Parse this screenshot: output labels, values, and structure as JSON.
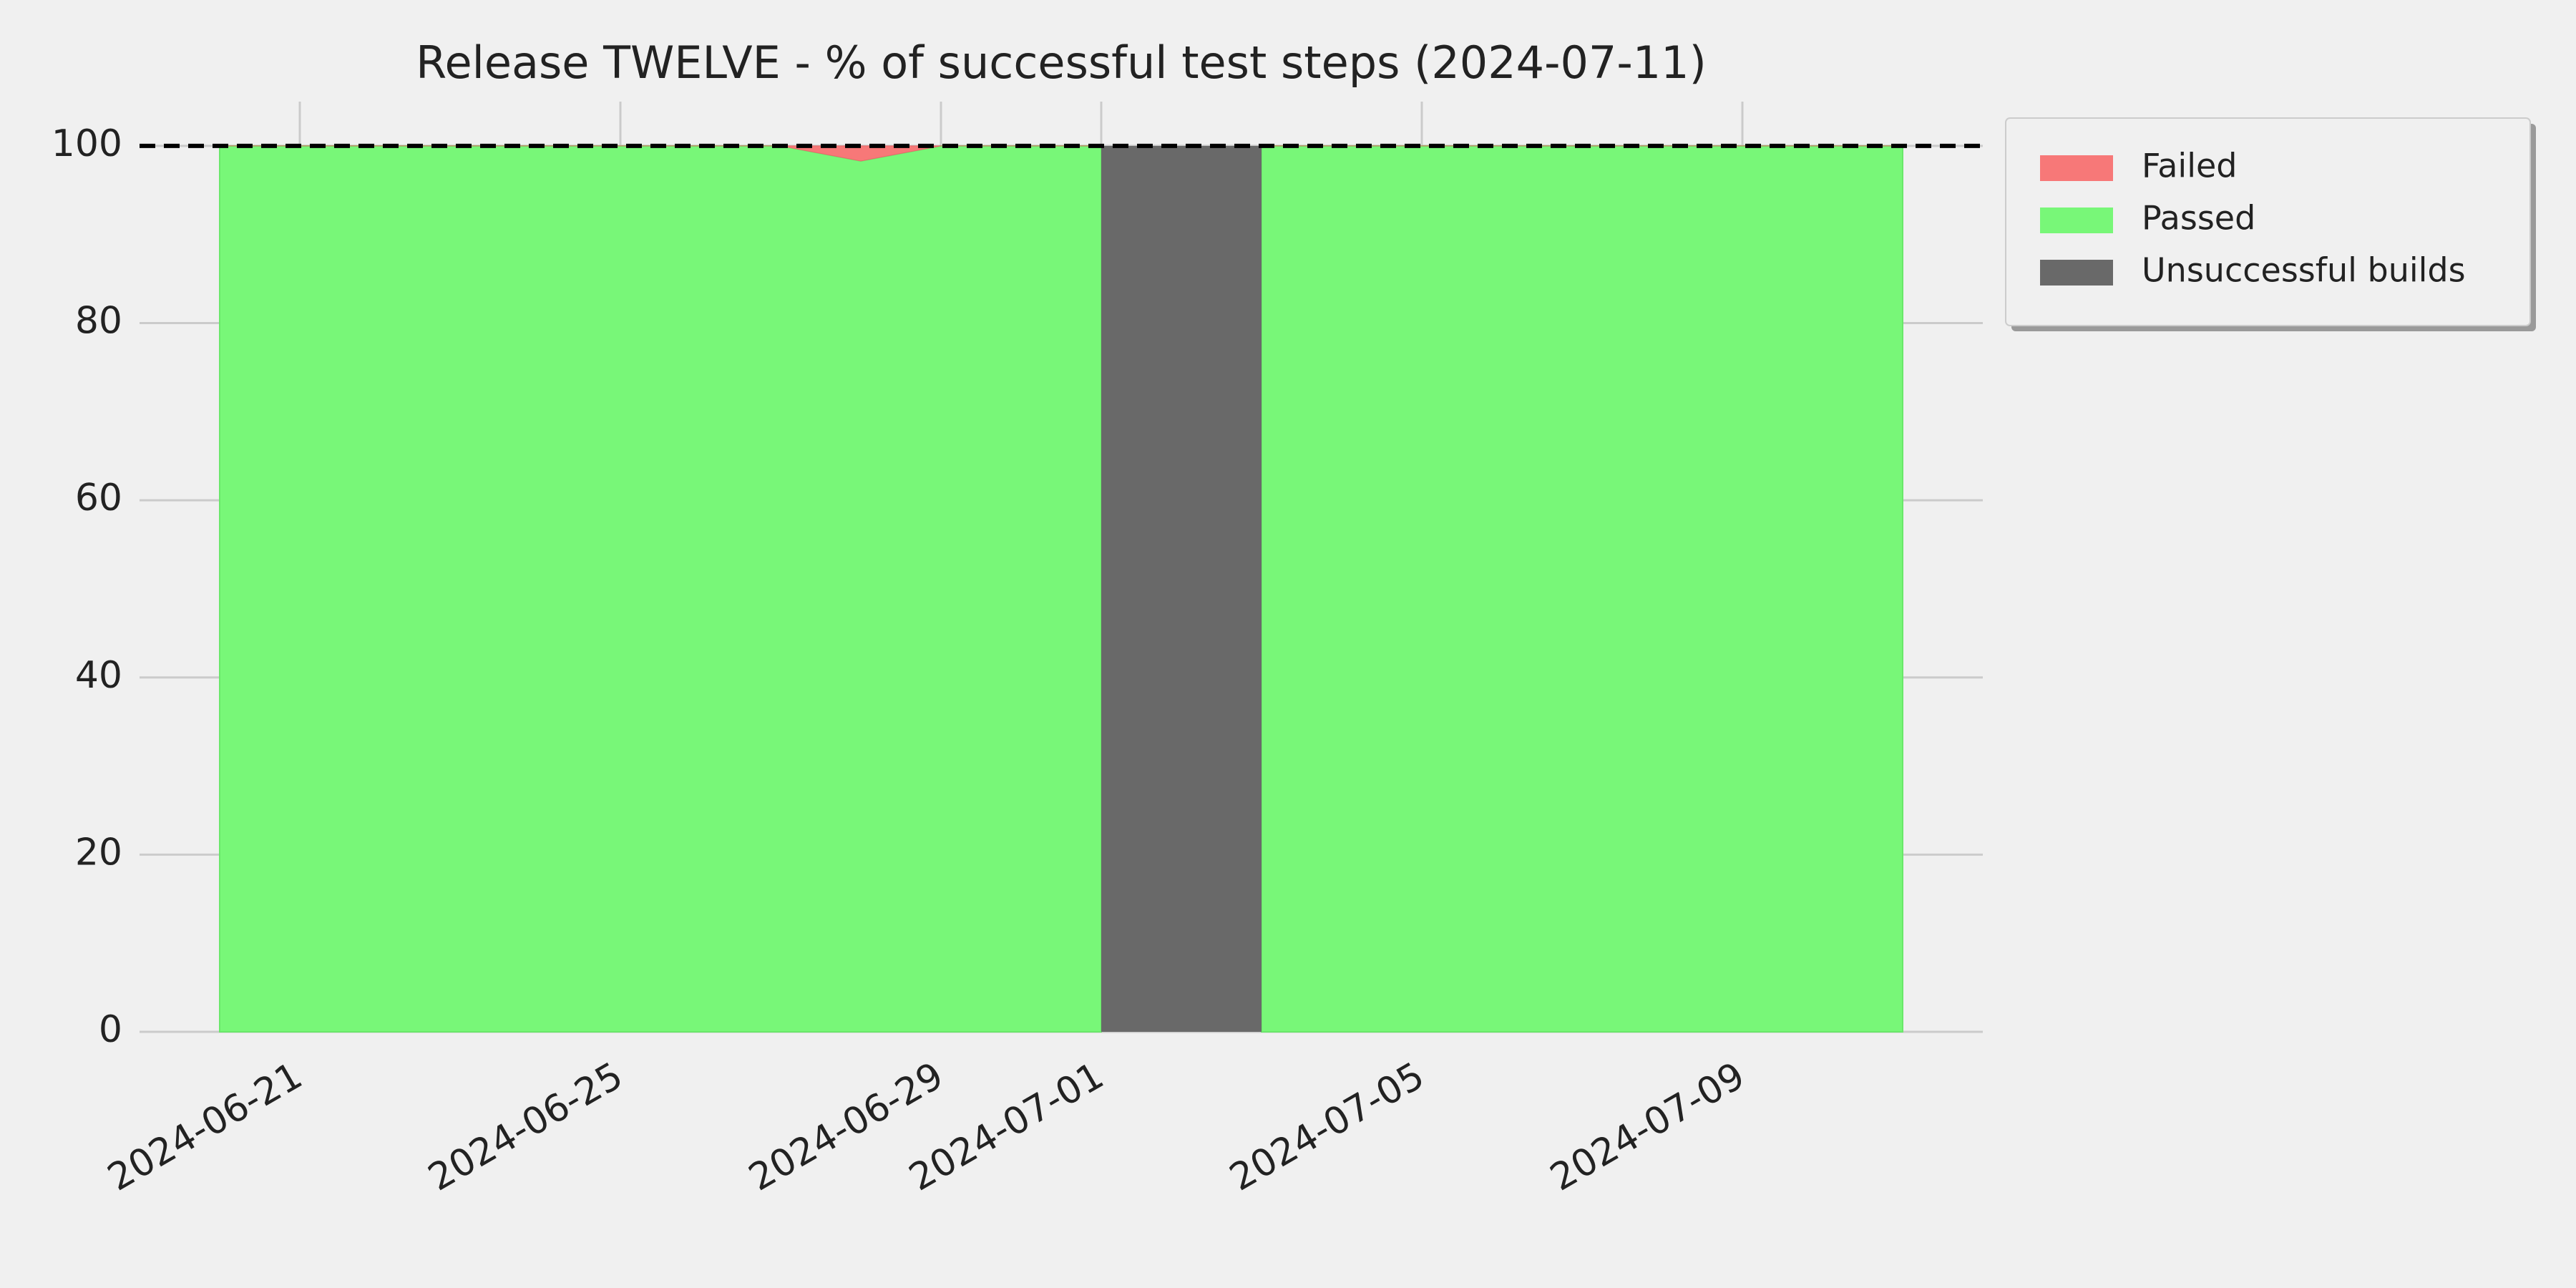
{
  "chart_data": {
    "type": "area",
    "title": "Release TWELVE - % of successful test steps (2024-07-11)",
    "x": [
      "2024-06-20",
      "2024-06-21",
      "2024-06-22",
      "2024-06-23",
      "2024-06-24",
      "2024-06-25",
      "2024-06-26",
      "2024-06-27",
      "2024-06-28",
      "2024-06-29",
      "2024-06-30",
      "2024-07-01",
      "2024-07-02",
      "2024-07-03",
      "2024-07-04",
      "2024-07-05",
      "2024-07-06",
      "2024-07-07",
      "2024-07-08",
      "2024-07-09",
      "2024-07-10",
      "2024-07-11"
    ],
    "series": [
      {
        "name": "Failed",
        "color": "#f77878",
        "values": [
          0,
          0,
          0,
          0,
          0,
          0,
          0,
          0,
          1.7,
          0,
          0,
          0,
          null,
          0,
          0,
          0,
          0,
          0,
          0,
          0,
          0,
          0
        ]
      },
      {
        "name": "Passed",
        "color": "#78f778",
        "values": [
          100,
          100,
          100,
          100,
          100,
          100,
          100,
          100,
          98.3,
          100,
          100,
          100,
          null,
          100,
          100,
          100,
          100,
          100,
          100,
          100,
          100,
          100
        ]
      }
    ],
    "unsuccessful_builds": {
      "name": "Unsuccessful builds",
      "color": "#696969",
      "spans": [
        {
          "start": "2024-07-01",
          "end": "2024-07-03",
          "value": 100
        }
      ]
    },
    "reference_line": 100,
    "xlim": [
      "2024-06-19",
      "2024-07-12"
    ],
    "xticks": [
      "2024-06-21",
      "2024-06-25",
      "2024-06-29",
      "2024-07-01",
      "2024-07-05",
      "2024-07-09"
    ],
    "ylim": [
      0,
      105
    ],
    "yticks": [
      0,
      20,
      40,
      60,
      80,
      100
    ],
    "grid": true,
    "legend": "outside-upper-right"
  }
}
